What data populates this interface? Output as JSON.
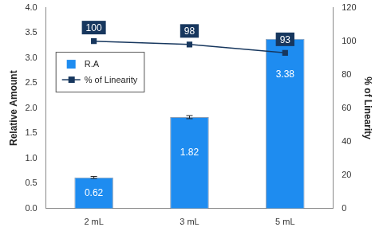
{
  "chart_data": {
    "type": "bar",
    "categories": [
      "2 mL",
      "3 mL",
      "5 mL"
    ],
    "series": [
      {
        "name": "R.A",
        "type": "bar",
        "color": "#1e8cf0",
        "values": [
          0.62,
          1.82,
          3.38
        ],
        "errors": [
          0.02,
          0.03,
          0
        ]
      },
      {
        "name": "% of Linearity",
        "type": "line",
        "axis": "y2",
        "color": "#17375e",
        "marker": "square",
        "values": [
          100,
          98,
          93
        ]
      }
    ],
    "ylabel": "Relative Amount",
    "y2label": "% of Linearity",
    "ylim": [
      0,
      4
    ],
    "yticks": [
      {
        "value": 0,
        "label": "0.0"
      },
      {
        "value": 0.5,
        "label": "0.5"
      },
      {
        "value": 1,
        "label": "1.0"
      },
      {
        "value": 1.5,
        "label": "1.5"
      },
      {
        "value": 2,
        "label": "2.0"
      },
      {
        "value": 2.5,
        "label": "2.5"
      },
      {
        "value": 3,
        "label": "3.0"
      },
      {
        "value": 3.5,
        "label": "3.5"
      },
      {
        "value": 4,
        "label": "4.0"
      }
    ],
    "y2lim": [
      0,
      120
    ],
    "y2ticks": [
      0,
      20,
      40,
      60,
      80,
      100,
      120
    ],
    "grid": false,
    "legend": "upper left",
    "data_labels": true
  }
}
